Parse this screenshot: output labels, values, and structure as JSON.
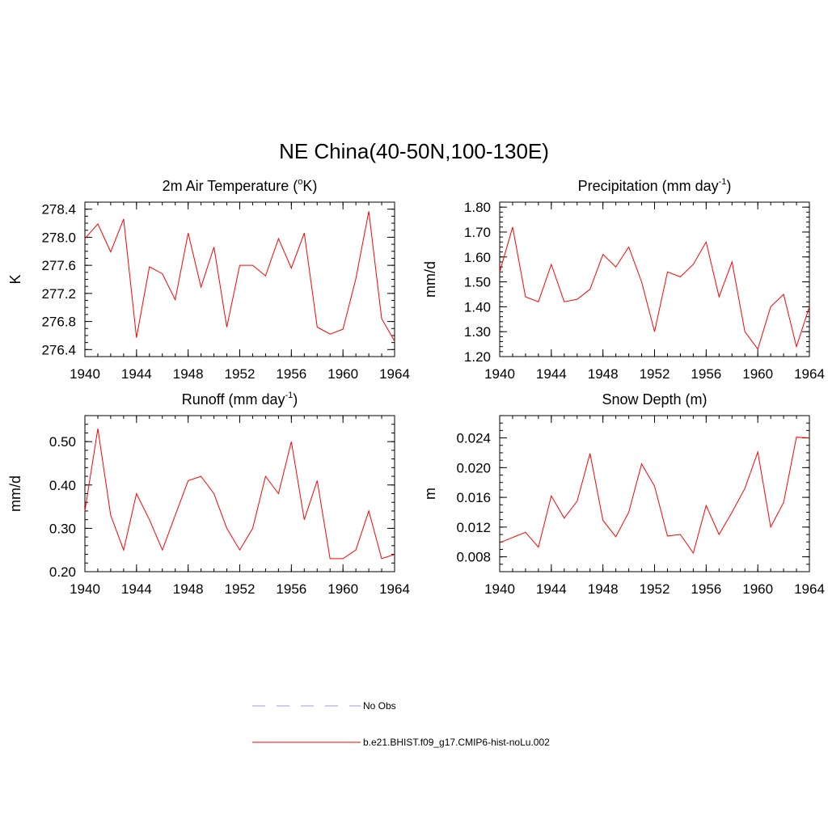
{
  "figure": {
    "title": "NE China(40-50N,100-130E)"
  },
  "legend": {
    "placement": "bottom-center",
    "items": [
      {
        "label": "No Obs",
        "color": "#9999ee",
        "dash": true
      },
      {
        "label": "b.e21.BHIST.f09_g17.CMIP6-hist-noLu.002",
        "color": "#ff0000",
        "dash": false
      }
    ]
  },
  "chart_data": [
    {
      "type": "line",
      "title": "2m Air Temperature (oK)",
      "title_parts": [
        [
          "2m Air Temperature (",
          ""
        ],
        [
          "o",
          "sup"
        ],
        [
          "K)",
          ""
        ]
      ],
      "ylabel": "K",
      "xlim": [
        1940,
        1964
      ],
      "ylim": [
        276.3,
        278.5
      ],
      "x_ticks": [
        1940,
        1944,
        1948,
        1952,
        1956,
        1960,
        1964
      ],
      "y_ticks": [
        276.4,
        276.8,
        277.2,
        277.6,
        278.0,
        278.4
      ],
      "y_tick_labels": [
        "276.4",
        "276.8",
        "277.2",
        "277.6",
        "278.0",
        "278.4"
      ],
      "x_minor": 1,
      "y_minor": 0.1,
      "grid": false,
      "series": [
        {
          "color": "#ff0000",
          "x": [
            1940,
            1941,
            1942,
            1943,
            1944,
            1945,
            1946,
            1947,
            1948,
            1949,
            1950,
            1951,
            1952,
            1953,
            1954,
            1955,
            1956,
            1957,
            1958,
            1959,
            1960,
            1961,
            1962,
            1963,
            1964
          ],
          "y": [
            277.98,
            278.19,
            277.79,
            278.26,
            276.57,
            277.58,
            277.48,
            277.11,
            278.06,
            277.29,
            277.86,
            276.72,
            277.6,
            277.6,
            277.45,
            277.98,
            277.56,
            278.06,
            276.72,
            276.62,
            276.69,
            277.41,
            278.37,
            276.84,
            276.52
          ]
        }
      ]
    },
    {
      "type": "line",
      "title": "Precipitation (mm day-1)",
      "title_parts": [
        [
          "Precipitation (mm day",
          ""
        ],
        [
          "-1",
          "sup"
        ],
        [
          ")",
          ""
        ]
      ],
      "ylabel": "mm/d",
      "xlim": [
        1940,
        1964
      ],
      "ylim": [
        1.2,
        1.82
      ],
      "x_ticks": [
        1940,
        1944,
        1948,
        1952,
        1956,
        1960,
        1964
      ],
      "y_ticks": [
        1.2,
        1.3,
        1.4,
        1.5,
        1.6,
        1.7,
        1.8
      ],
      "y_tick_labels": [
        "1.20",
        "1.30",
        "1.40",
        "1.50",
        "1.60",
        "1.70",
        "1.80"
      ],
      "x_minor": 1,
      "y_minor": 0.02,
      "grid": false,
      "series": [
        {
          "color": "#ff0000",
          "x": [
            1940,
            1941,
            1942,
            1943,
            1944,
            1945,
            1946,
            1947,
            1948,
            1949,
            1950,
            1951,
            1952,
            1953,
            1954,
            1955,
            1956,
            1957,
            1958,
            1959,
            1960,
            1961,
            1962,
            1963,
            1964
          ],
          "y": [
            1.54,
            1.72,
            1.44,
            1.42,
            1.57,
            1.42,
            1.43,
            1.47,
            1.61,
            1.56,
            1.64,
            1.5,
            1.3,
            1.54,
            1.52,
            1.57,
            1.66,
            1.44,
            1.58,
            1.3,
            1.23,
            1.4,
            1.45,
            1.24,
            1.4
          ]
        }
      ]
    },
    {
      "type": "line",
      "title": "Runoff (mm day-1)",
      "title_parts": [
        [
          "Runoff (mm day",
          ""
        ],
        [
          "-1",
          "sup"
        ],
        [
          ")",
          ""
        ]
      ],
      "ylabel": "mm/d",
      "xlim": [
        1940,
        1964
      ],
      "ylim": [
        0.2,
        0.56
      ],
      "x_ticks": [
        1940,
        1944,
        1948,
        1952,
        1956,
        1960,
        1964
      ],
      "y_ticks": [
        0.2,
        0.3,
        0.4,
        0.5
      ],
      "y_tick_labels": [
        "0.20",
        "0.30",
        "0.40",
        "0.50"
      ],
      "x_minor": 1,
      "y_minor": 0.02,
      "grid": false,
      "series": [
        {
          "color": "#ff0000",
          "x": [
            1940,
            1941,
            1942,
            1943,
            1944,
            1945,
            1946,
            1947,
            1948,
            1949,
            1950,
            1951,
            1952,
            1953,
            1954,
            1955,
            1956,
            1957,
            1958,
            1959,
            1960,
            1961,
            1962,
            1963,
            1964
          ],
          "y": [
            0.34,
            0.53,
            0.33,
            0.25,
            0.38,
            0.32,
            0.25,
            0.33,
            0.41,
            0.42,
            0.38,
            0.3,
            0.25,
            0.3,
            0.42,
            0.38,
            0.5,
            0.32,
            0.41,
            0.23,
            0.23,
            0.25,
            0.34,
            0.23,
            0.24
          ]
        }
      ]
    },
    {
      "type": "line",
      "title": "Snow Depth (m)",
      "title_parts": [
        [
          "Snow Depth (m)",
          ""
        ]
      ],
      "ylabel": "m",
      "xlim": [
        1940,
        1964
      ],
      "ylim": [
        0.006,
        0.027
      ],
      "x_ticks": [
        1940,
        1944,
        1948,
        1952,
        1956,
        1960,
        1964
      ],
      "y_ticks": [
        0.008,
        0.012,
        0.016,
        0.02,
        0.024
      ],
      "y_tick_labels": [
        "0.008",
        "0.012",
        "0.016",
        "0.020",
        "0.024"
      ],
      "x_minor": 1,
      "y_minor": 0.001,
      "grid": false,
      "series": [
        {
          "color": "#ff0000",
          "x": [
            1940,
            1941,
            1942,
            1943,
            1944,
            1945,
            1946,
            1947,
            1948,
            1949,
            1950,
            1951,
            1952,
            1953,
            1954,
            1955,
            1956,
            1957,
            1958,
            1959,
            1960,
            1961,
            1962,
            1963,
            1964
          ],
          "y": [
            0.0099,
            0.0106,
            0.0113,
            0.0093,
            0.0162,
            0.0132,
            0.0155,
            0.0219,
            0.0129,
            0.0107,
            0.014,
            0.0205,
            0.0175,
            0.0108,
            0.011,
            0.0085,
            0.0149,
            0.011,
            0.014,
            0.0172,
            0.0221,
            0.012,
            0.0153,
            0.0241,
            0.024
          ]
        }
      ]
    }
  ]
}
